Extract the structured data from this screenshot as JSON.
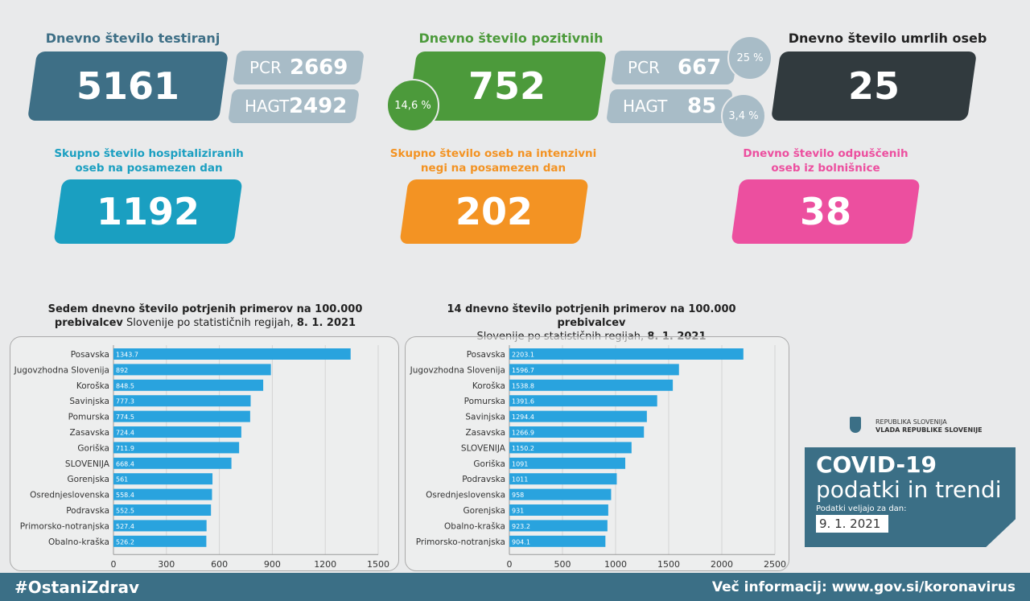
{
  "tests": {
    "title": "Dnevno število testiranj",
    "total": "5161",
    "pcr_label": "PCR",
    "pcr": "2669",
    "hagt_label": "HAGT",
    "hagt": "2492"
  },
  "positive": {
    "title": "Dnevno število pozitivnih",
    "total": "752",
    "rate": "14,6 %",
    "pcr_label": "PCR",
    "pcr": "667",
    "pcr_rate": "25 %",
    "hagt_label": "HAGT",
    "hagt": "85",
    "hagt_rate": "3,4 %"
  },
  "deaths": {
    "title": "Dnevno število umrlih oseb",
    "value": "25"
  },
  "hospital": {
    "title1": "Skupno število hospitaliziranih",
    "title2": "oseb na posamezen dan",
    "value": "1192"
  },
  "icu": {
    "title1": "Skupno število oseb na intenzivni",
    "title2": "negi na posamezen dan",
    "value": "202"
  },
  "discharged": {
    "title1": "Dnevno število odpuščenih",
    "title2": "oseb iz bolnišnice",
    "value": "38"
  },
  "colors": {
    "tests": "#3e6f86",
    "sub": "#a8bcc7",
    "positive": "#4c9a3b",
    "deaths": "#313a3e",
    "hospital": "#1a9fc1",
    "icu": "#f39323",
    "discharged": "#ec4f9f",
    "bar": "#29a3de",
    "footer": "#3b6f86"
  },
  "chart_data": [
    {
      "type": "bar",
      "orientation": "horizontal",
      "title_bold": "Sedem dnevno število potrjenih primerov na 100.000",
      "title_bold2": "prebivalcev",
      "title_rest": " Slovenije po statističnih regijah, ",
      "title_date": "8. 1. 2021",
      "categories": [
        "Posavska",
        "Jugovzhodna Slovenija",
        "Koroška",
        "Savinjska",
        "Pomurska",
        "Zasavska",
        "Goriška",
        "SLOVENIJA",
        "Gorenjska",
        "Osrednjeslovenska",
        "Podravska",
        "Primorsko-notranjska",
        "Obalno-kraška"
      ],
      "values": [
        1343.7,
        892,
        848.5,
        777.3,
        774.5,
        724.4,
        711.9,
        668.4,
        561,
        558.4,
        552.5,
        527.4,
        526.2
      ],
      "xlim": [
        0,
        1500
      ],
      "xticks": [
        0,
        300,
        600,
        900,
        1200,
        1500
      ],
      "grid": true
    },
    {
      "type": "bar",
      "orientation": "horizontal",
      "title_bold": "14 dnevno število potrjenih primerov na 100.000 prebivalcev",
      "title_rest": "Slovenije po statističnih regijah, ",
      "title_date": "8. 1. 2021",
      "categories": [
        "Posavska",
        "Jugovzhodna Slovenija",
        "Koroška",
        "Pomurska",
        "Savinjska",
        "Zasavska",
        "SLOVENIJA",
        "Goriška",
        "Podravska",
        "Osrednjeslovenska",
        "Gorenjska",
        "Obalno-kraška",
        "Primorsko-notranjska"
      ],
      "values": [
        2203.1,
        1596.7,
        1538.8,
        1391.6,
        1294.4,
        1266.9,
        1150.2,
        1091,
        1011,
        958,
        931,
        923.2,
        904.1
      ],
      "xlim": [
        0,
        2500
      ],
      "xticks": [
        0,
        500,
        1000,
        1500,
        2000,
        2500
      ],
      "grid": true
    }
  ],
  "govt": {
    "line1": "REPUBLIKA SLOVENIJA",
    "line2": "VLADA REPUBLIKE SLOVENIJE"
  },
  "brand": {
    "title": "COVID-19",
    "subtitle": "podatki in trendi",
    "valid_label": "Podatki veljajo za dan:",
    "date": "9. 1. 2021"
  },
  "footer": {
    "hashtag": "#OstaniZdrav",
    "info": "Več informacij: www.gov.si/koronavirus"
  }
}
